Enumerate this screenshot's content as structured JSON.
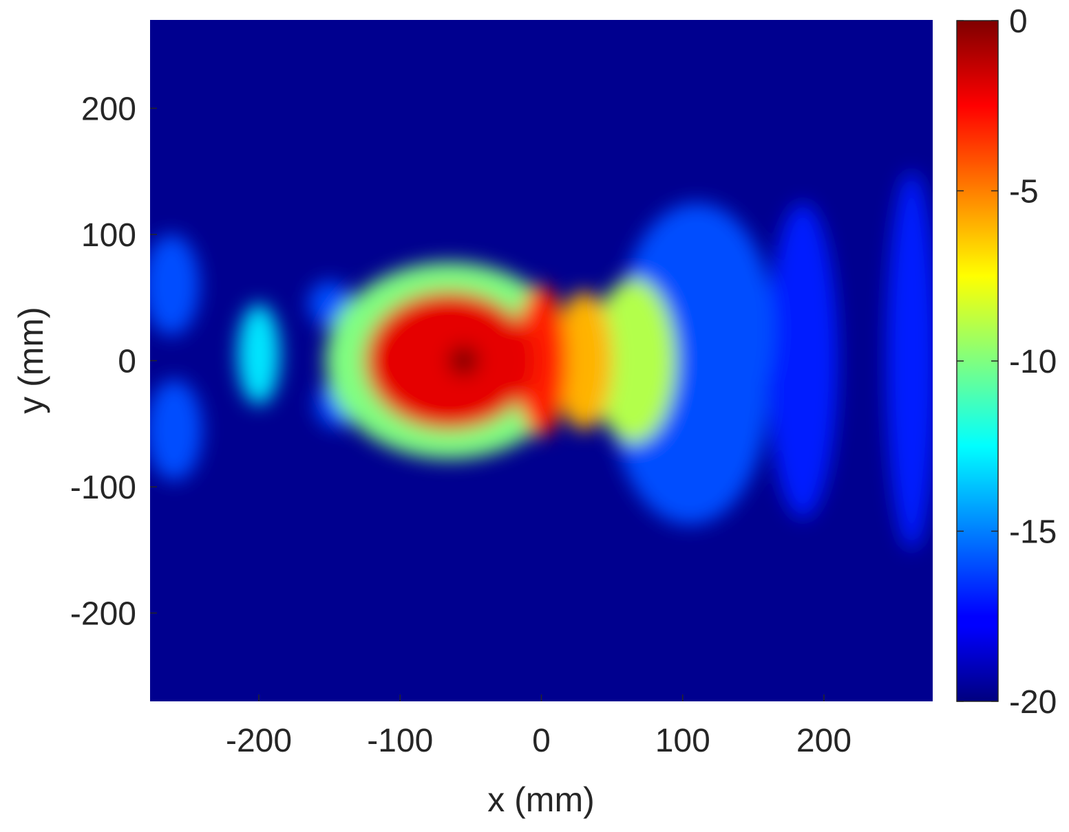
{
  "chart_data": {
    "type": "heatmap",
    "title": "",
    "xlabel": "x (mm)",
    "ylabel": "y (mm)",
    "xlim": [
      -277,
      277
    ],
    "ylim": [
      -270,
      270
    ],
    "xticks": [
      -200,
      -100,
      0,
      100,
      200
    ],
    "yticks": [
      200,
      100,
      0,
      -100,
      -200
    ],
    "colorbar": {
      "colormap": "jet",
      "range": [
        -20,
        0
      ],
      "ticks": [
        0,
        -5,
        -10,
        -15,
        -20
      ]
    },
    "background_level": -20,
    "peak": {
      "x": -55,
      "y": 0,
      "value": 0
    },
    "features": [
      {
        "kind": "main-lobe",
        "x": -65,
        "y": 0,
        "rx": 60,
        "ry": 55,
        "level": -2
      },
      {
        "kind": "main-lobe-ring",
        "x": -65,
        "y": 0,
        "rx": 88,
        "ry": 78,
        "level": -10
      },
      {
        "kind": "arc",
        "x": 0,
        "y": 0,
        "rx": 18,
        "ry": 60,
        "level": -3
      },
      {
        "kind": "arc",
        "x": 30,
        "y": 0,
        "rx": 20,
        "ry": 55,
        "level": -6
      },
      {
        "kind": "arc",
        "x": 65,
        "y": 0,
        "rx": 30,
        "ry": 65,
        "level": -9
      },
      {
        "kind": "arc",
        "x": 110,
        "y": 25,
        "rx": 55,
        "ry": 100,
        "level": -16
      },
      {
        "kind": "arc",
        "x": 105,
        "y": -30,
        "rx": 55,
        "ry": 100,
        "level": -16
      },
      {
        "kind": "arc",
        "x": 185,
        "y": 0,
        "rx": 25,
        "ry": 125,
        "level": -17
      },
      {
        "kind": "arc",
        "x": 262,
        "y": 0,
        "rx": 18,
        "ry": 150,
        "level": -17
      },
      {
        "kind": "lobe",
        "x": -200,
        "y": 5,
        "rx": 15,
        "ry": 40,
        "level": -13
      },
      {
        "kind": "lobe",
        "x": -262,
        "y": 60,
        "rx": 20,
        "ry": 40,
        "level": -16
      },
      {
        "kind": "lobe",
        "x": -260,
        "y": -55,
        "rx": 20,
        "ry": 40,
        "level": -16
      },
      {
        "kind": "lobe",
        "x": -150,
        "y": 45,
        "rx": 15,
        "ry": 18,
        "level": -16
      },
      {
        "kind": "lobe",
        "x": -145,
        "y": -35,
        "rx": 15,
        "ry": 18,
        "level": -16
      }
    ]
  }
}
